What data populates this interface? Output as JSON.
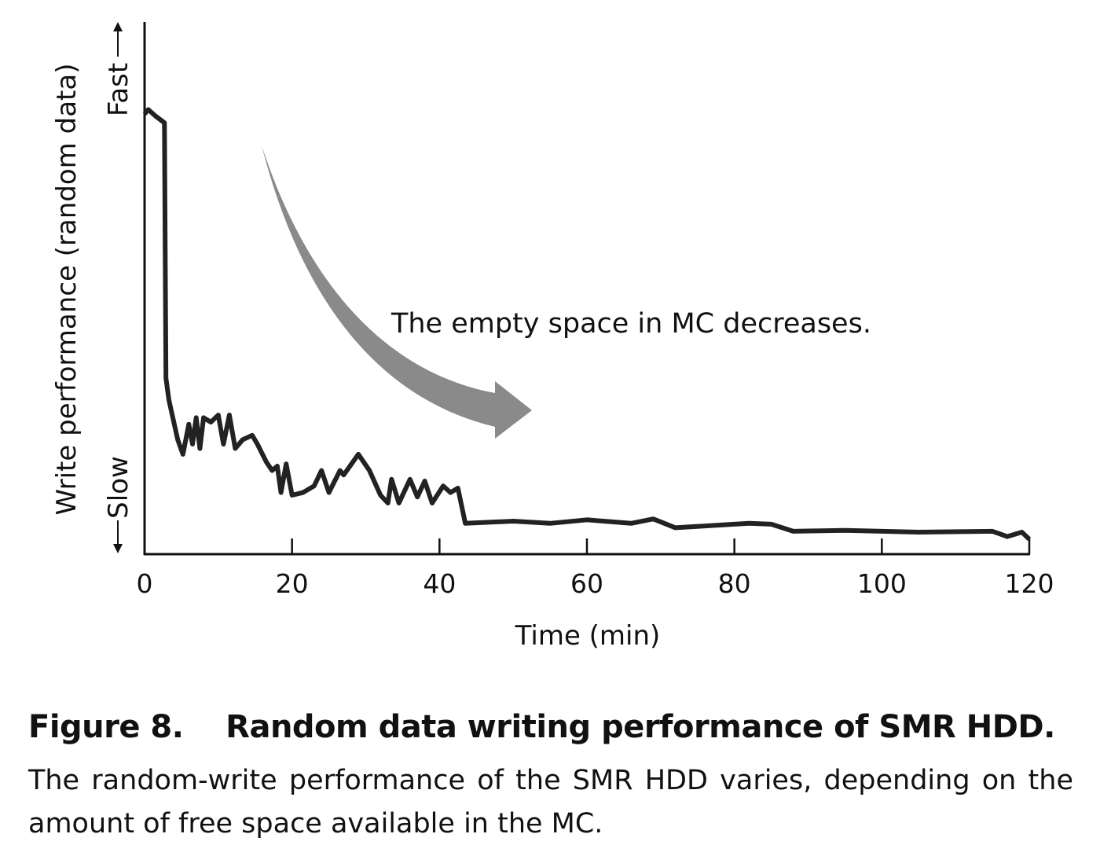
{
  "chart_data": {
    "type": "line",
    "xlabel": "Time (min)",
    "ylabel": "Write performance (random data)",
    "y_fast_label": "Fast",
    "y_slow_label": "Slow",
    "xlim": [
      0,
      120
    ],
    "ylim": [
      0,
      100
    ],
    "y_scale_note_hidden": true,
    "xticks": [
      0,
      20,
      40,
      60,
      80,
      100,
      120
    ],
    "grid": false,
    "annotation": "The empty space in MC decreases.",
    "colors": {
      "line": "#222222",
      "arrow": "#8a8a8a"
    },
    "series": [
      {
        "x": [
          0,
          0.5,
          1.5,
          2.7,
          2.9,
          3.3,
          4.5,
          5.2,
          6,
          6.5,
          7,
          7.5,
          8,
          9,
          10,
          10.7,
          11.5,
          12.3,
          13.3,
          14.6,
          15.3,
          16.5,
          17.3,
          18,
          18.5,
          19.2,
          20,
          21.5,
          23,
          24,
          25,
          26.5,
          27,
          29,
          30.5,
          32,
          33,
          33.5,
          34.5,
          36,
          37,
          38,
          39,
          40.5,
          41.5,
          42.5,
          43.5,
          50,
          55,
          60,
          66,
          69,
          72,
          78,
          82,
          85,
          88,
          95,
          105,
          115,
          117,
          119,
          120
        ],
        "y": [
          100,
          101,
          99.5,
          98,
          40,
          35,
          26,
          22.7,
          29.5,
          25,
          31,
          24,
          31,
          30,
          31.6,
          25,
          31.6,
          24,
          26,
          27,
          25,
          21,
          19,
          20,
          14,
          20.5,
          13.4,
          14,
          15.5,
          19,
          14,
          19,
          18,
          22.7,
          19,
          13.4,
          11.6,
          17,
          11.6,
          17,
          13,
          16.6,
          11.6,
          15.5,
          14,
          15,
          7,
          7.5,
          7,
          7.8,
          7,
          8,
          6,
          6.6,
          7,
          6.8,
          5.2,
          5.4,
          5,
          5.2,
          4,
          5,
          3.4
        ]
      }
    ]
  },
  "caption": {
    "title": "Figure 8.    Random data writing performance of SMR HDD.",
    "body": "The random-write performance of the SMR HDD varies, depending on the amount of free space available in the MC."
  }
}
